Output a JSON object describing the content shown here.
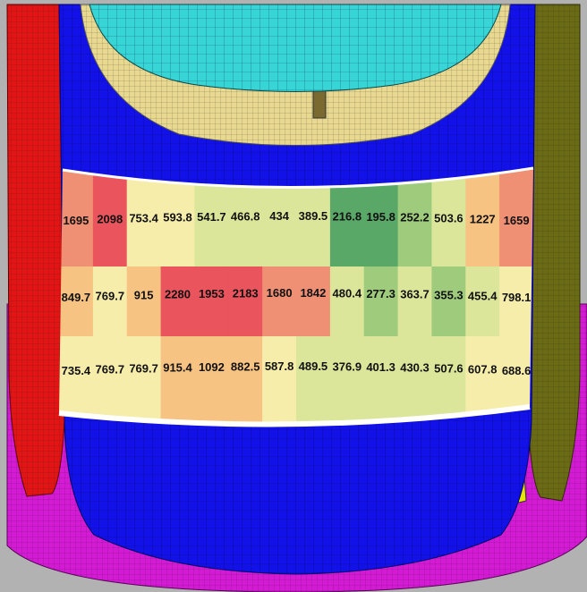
{
  "heatmap": {
    "rows": [
      [
        "1695",
        "2098",
        "753.4",
        "593.8",
        "541.7",
        "466.8",
        "434",
        "389.5",
        "216.8",
        "195.8",
        "252.2",
        "503.6",
        "1227",
        "1659"
      ],
      [
        "849.7",
        "769.7",
        "915",
        "2280",
        "1953",
        "2183",
        "1680",
        "1842",
        "480.4",
        "277.3",
        "363.7",
        "355.3",
        "455.4",
        "798.1"
      ],
      [
        "735.4",
        "769.7",
        "769.7",
        "915.4",
        "1092",
        "882.5",
        "587.8",
        "489.5",
        "376.9",
        "401.3",
        "430.3",
        "507.6",
        "607.8",
        "688.6"
      ]
    ],
    "color_scale": [
      "#59a868",
      "#9fcb7c",
      "#dbe69a",
      "#f6edab",
      "#f6c383",
      "#ef8f73",
      "#e9545d"
    ]
  },
  "colors": {
    "background": "#b2b2b2",
    "frame_red": "#e21414",
    "frame_olive": "#6b6b16",
    "frame_magenta": "#d41ad4",
    "shell_blue": "#1212e8",
    "dome_cyan": "#37d5d5",
    "tan_part": "#e8d890",
    "mesh_line": "#0a0a30"
  }
}
